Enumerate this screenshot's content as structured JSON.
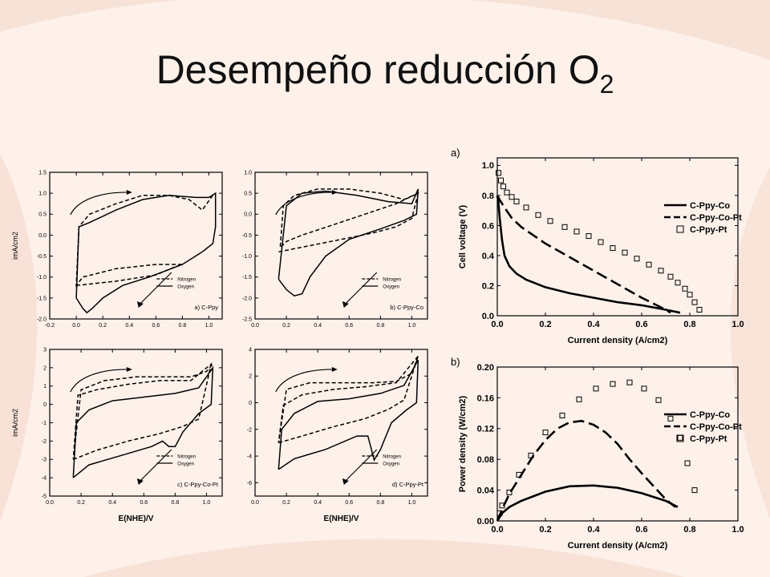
{
  "slide": {
    "title": "Desempeño reducción O",
    "title_subscript": "2"
  },
  "background": {
    "color": "#fdf1ea",
    "swirl_color": "#f5d9cc"
  },
  "chart_data": [
    {
      "type": "line",
      "panel_label": "a) C-Ppy",
      "xlabel": "",
      "ylabel": "imA/cm2",
      "xlim": [
        -0.2,
        1.1
      ],
      "ylim": [
        -2.0,
        1.5
      ],
      "xticks": [
        "-0.2",
        "0.0",
        "0.2",
        "0.4",
        "0.6",
        "0.8",
        "1.0"
      ],
      "xtick_values": [
        -0.2,
        0,
        0.2,
        0.4,
        0.6,
        0.8,
        1.0
      ],
      "yticks": [
        "-2.0",
        "-1.5",
        "-1.0",
        "-0.5",
        "0.0",
        "0.5",
        "1.0",
        "1.5"
      ],
      "ytick_values": [
        -2,
        -1.5,
        -1,
        -0.5,
        0,
        0.5,
        1,
        1.5
      ],
      "legend": [
        "Nitrogen",
        "Oxygen"
      ],
      "series": [
        {
          "name": "Nitrogen",
          "style": "dashed",
          "x": [
            0.0,
            0.3,
            0.6,
            0.75,
            0.8,
            0.6,
            0.3,
            0.05,
            0.0,
            0.02,
            0.1,
            0.3,
            0.5,
            0.7,
            0.85,
            0.95,
            1.04
          ],
          "y": [
            -1.2,
            -1.1,
            -0.95,
            -0.75,
            -0.7,
            -0.7,
            -0.8,
            -1.0,
            -1.2,
            0.2,
            0.5,
            0.75,
            0.95,
            0.95,
            0.85,
            0.6,
            1.0
          ]
        },
        {
          "name": "Oxygen",
          "style": "solid",
          "x": [
            0.0,
            0.05,
            0.08,
            0.12,
            0.2,
            0.35,
            0.55,
            0.8,
            0.95,
            1.03,
            1.05,
            1.05,
            1.0,
            0.9,
            0.7,
            0.5,
            0.3,
            0.1,
            0.02,
            0.0
          ],
          "y": [
            -1.5,
            -1.75,
            -1.85,
            -1.75,
            -1.5,
            -1.2,
            -1.0,
            -0.7,
            -0.4,
            -0.2,
            0.2,
            1.0,
            0.9,
            0.9,
            0.95,
            0.85,
            0.6,
            0.3,
            0.2,
            -1.5
          ]
        }
      ]
    },
    {
      "type": "line",
      "panel_label": "b) C-Ppy-Co",
      "xlabel": "",
      "ylabel": "",
      "xlim": [
        0.0,
        1.1
      ],
      "ylim": [
        -2.5,
        1.0
      ],
      "xticks": [
        "0.0",
        "0.2",
        "0.4",
        "0.6",
        "0.8",
        "1.0"
      ],
      "xtick_values": [
        0,
        0.2,
        0.4,
        0.6,
        0.8,
        1.0
      ],
      "yticks": [
        "-2.5",
        "-2.0",
        "-1.5",
        "-1.0",
        "-0.5",
        "0.0",
        "0.5",
        "1.0"
      ],
      "ytick_values": [
        -2.5,
        -2,
        -1.5,
        -1,
        -0.5,
        0,
        0.5,
        1
      ],
      "legend": [
        "Nitrogen",
        "Oxygen"
      ],
      "series": [
        {
          "name": "Nitrogen",
          "style": "dashed",
          "x": [
            0.15,
            0.35,
            0.55,
            0.75,
            0.9,
            1.0,
            1.04,
            0.9,
            0.7,
            0.5,
            0.3,
            0.2,
            0.16,
            0.18,
            0.25,
            0.4,
            0.6,
            0.8,
            0.95,
            1.04
          ],
          "y": [
            -0.9,
            -0.75,
            -0.6,
            -0.45,
            -0.3,
            -0.1,
            0.5,
            0.25,
            0.0,
            -0.25,
            -0.5,
            -0.65,
            -0.8,
            0.2,
            0.45,
            0.6,
            0.6,
            0.5,
            0.35,
            0.5
          ]
        },
        {
          "name": "Oxygen",
          "style": "solid",
          "x": [
            0.15,
            0.2,
            0.25,
            0.3,
            0.35,
            0.45,
            0.6,
            0.8,
            0.95,
            1.03,
            1.04,
            1.0,
            0.85,
            0.65,
            0.45,
            0.3,
            0.2,
            0.15
          ],
          "y": [
            -1.55,
            -1.8,
            -1.95,
            -1.9,
            -1.5,
            -1.0,
            -0.6,
            -0.35,
            -0.15,
            0.0,
            0.6,
            0.25,
            0.3,
            0.45,
            0.55,
            0.5,
            0.2,
            -1.55
          ]
        }
      ]
    },
    {
      "type": "line",
      "panel_label": "c) C-Ppy-Co-Pt",
      "xlabel": "E(NHE)/V",
      "ylabel": "imA/cm2",
      "xlim": [
        0.0,
        1.1
      ],
      "ylim": [
        -5,
        3
      ],
      "xticks": [
        "0.0",
        "0.2",
        "0.4",
        "0.6",
        "0.8",
        "1.0"
      ],
      "xtick_values": [
        0,
        0.2,
        0.4,
        0.6,
        0.8,
        1.0
      ],
      "yticks": [
        "-5",
        "-4",
        "-3",
        "-2",
        "-1",
        "0",
        "1",
        "2",
        "3"
      ],
      "ytick_values": [
        -5,
        -4,
        -3,
        -2,
        -1,
        0,
        1,
        2,
        3
      ],
      "legend": [
        "Nitrogen",
        "Oxygen"
      ],
      "series": [
        {
          "name": "Nitrogen",
          "style": "dashed",
          "x": [
            0.15,
            0.3,
            0.5,
            0.7,
            0.85,
            0.95,
            1.03,
            0.9,
            0.7,
            0.5,
            0.3,
            0.18,
            0.15,
            0.2,
            0.35,
            0.55,
            0.75,
            0.9,
            1.0,
            1.04
          ],
          "y": [
            -3.0,
            -2.5,
            -2.0,
            -1.6,
            -1.2,
            -0.8,
            2.2,
            1.3,
            1.3,
            1.1,
            0.8,
            0.5,
            -3.0,
            0.8,
            1.3,
            1.5,
            1.5,
            1.5,
            1.8,
            2.2
          ]
        },
        {
          "name": "Oxygen",
          "style": "solid",
          "x": [
            0.15,
            0.25,
            0.45,
            0.65,
            0.72,
            0.76,
            0.8,
            0.85,
            0.95,
            1.03,
            1.04,
            0.95,
            0.8,
            0.6,
            0.4,
            0.25,
            0.17,
            0.15
          ],
          "y": [
            -4.0,
            -3.3,
            -2.8,
            -2.3,
            -2.0,
            -2.3,
            -2.3,
            -1.5,
            -0.5,
            0.0,
            2.0,
            0.9,
            0.6,
            0.4,
            0.2,
            -0.3,
            -1.0,
            -4.0
          ]
        }
      ]
    },
    {
      "type": "line",
      "panel_label": "d) C-Ppy-Pt",
      "xlabel": "E(NHE)/V",
      "ylabel": "",
      "xlim": [
        0.0,
        1.1
      ],
      "ylim": [
        -7,
        4
      ],
      "xticks": [
        "0.0",
        "0.2",
        "0.4",
        "0.6",
        "0.8",
        "1.0"
      ],
      "xtick_values": [
        0,
        0.2,
        0.4,
        0.6,
        0.8,
        1.0
      ],
      "yticks": [
        "-6",
        "-4",
        "-2",
        "0",
        "2",
        "4"
      ],
      "ytick_values": [
        -6,
        -4,
        -2,
        0,
        2,
        4
      ],
      "legend": [
        "Nitrogen",
        "Oxygen"
      ],
      "series": [
        {
          "name": "Nitrogen",
          "style": "dashed",
          "x": [
            0.15,
            0.3,
            0.5,
            0.7,
            0.85,
            0.95,
            1.04,
            0.9,
            0.7,
            0.5,
            0.3,
            0.18,
            0.15,
            0.2,
            0.35,
            0.55,
            0.75,
            0.9,
            1.0,
            1.04
          ],
          "y": [
            -3.0,
            -2.5,
            -1.8,
            -1.2,
            -0.5,
            0.2,
            3.5,
            1.5,
            1.2,
            1.0,
            0.6,
            -0.2,
            -3.0,
            1.0,
            1.5,
            1.5,
            1.5,
            1.6,
            2.2,
            3.5
          ]
        },
        {
          "name": "Oxygen",
          "style": "solid",
          "x": [
            0.15,
            0.25,
            0.45,
            0.65,
            0.72,
            0.76,
            0.8,
            0.87,
            0.97,
            1.03,
            1.04,
            0.95,
            0.8,
            0.6,
            0.4,
            0.25,
            0.17,
            0.15
          ],
          "y": [
            -5.0,
            -4.2,
            -3.5,
            -2.5,
            -2.5,
            -4.3,
            -3.5,
            -1.5,
            -0.5,
            0.0,
            3.2,
            1.3,
            0.7,
            0.3,
            0.1,
            -0.8,
            -2.0,
            -5.0
          ]
        }
      ]
    },
    {
      "type": "line",
      "panel_label": "a)",
      "xlabel": "Current density (A/cm2)",
      "ylabel": "Cell voltage (V)",
      "xlim": [
        0.0,
        1.0
      ],
      "ylim": [
        0.0,
        1.05
      ],
      "xticks": [
        "0.0",
        "0.2",
        "0.4",
        "0.6",
        "0.8",
        "1.0"
      ],
      "xtick_values": [
        0,
        0.2,
        0.4,
        0.6,
        0.8,
        1.0
      ],
      "yticks": [
        "0.0",
        "0.2",
        "0.4",
        "0.6",
        "0.8",
        "1.0"
      ],
      "ytick_values": [
        0,
        0.2,
        0.4,
        0.6,
        0.8,
        1.0
      ],
      "legend": [
        "C-Ppy-Co",
        "C-Ppy-Co-Pt",
        "C-Ppy-Pt"
      ],
      "series": [
        {
          "name": "C-Ppy-Co",
          "style": "solid",
          "x": [
            0.0,
            0.005,
            0.01,
            0.02,
            0.03,
            0.05,
            0.08,
            0.12,
            0.2,
            0.3,
            0.4,
            0.5,
            0.6,
            0.7,
            0.76
          ],
          "y": [
            0.8,
            0.75,
            0.65,
            0.5,
            0.4,
            0.33,
            0.28,
            0.24,
            0.19,
            0.15,
            0.12,
            0.09,
            0.07,
            0.04,
            0.02
          ]
        },
        {
          "name": "C-Ppy-Co-Pt",
          "style": "dashed",
          "x": [
            0.0,
            0.01,
            0.03,
            0.06,
            0.1,
            0.2,
            0.3,
            0.4,
            0.5,
            0.6,
            0.7,
            0.72
          ],
          "y": [
            0.8,
            0.77,
            0.72,
            0.65,
            0.59,
            0.48,
            0.39,
            0.3,
            0.21,
            0.12,
            0.04,
            0.02
          ]
        },
        {
          "name": "C-Ppy-Pt",
          "style": "squares",
          "x": [
            0.005,
            0.015,
            0.025,
            0.04,
            0.06,
            0.08,
            0.12,
            0.17,
            0.22,
            0.28,
            0.33,
            0.38,
            0.43,
            0.48,
            0.53,
            0.58,
            0.63,
            0.68,
            0.72,
            0.75,
            0.78,
            0.8,
            0.82,
            0.84
          ],
          "y": [
            0.95,
            0.9,
            0.86,
            0.82,
            0.79,
            0.76,
            0.72,
            0.67,
            0.63,
            0.59,
            0.56,
            0.53,
            0.49,
            0.45,
            0.42,
            0.38,
            0.34,
            0.3,
            0.26,
            0.22,
            0.18,
            0.14,
            0.09,
            0.04
          ]
        }
      ]
    },
    {
      "type": "line",
      "panel_label": "b)",
      "xlabel": "Current density (A/cm2)",
      "ylabel": "Power density (W/cm2)",
      "xlim": [
        0.0,
        1.0
      ],
      "ylim": [
        0.0,
        0.2
      ],
      "xticks": [
        "0.0",
        "0.2",
        "0.4",
        "0.6",
        "0.8",
        "1.0"
      ],
      "xtick_values": [
        0,
        0.2,
        0.4,
        0.6,
        0.8,
        1.0
      ],
      "yticks": [
        "0.00",
        "0.04",
        "0.08",
        "0.12",
        "0.16",
        "0.20"
      ],
      "ytick_values": [
        0,
        0.04,
        0.08,
        0.12,
        0.16,
        0.2
      ],
      "legend": [
        "C-Ppy-Co",
        "C-Ppy-Co-Pt",
        "C-Ppy-Pt"
      ],
      "series": [
        {
          "name": "C-Ppy-Co",
          "style": "solid",
          "x": [
            0.0,
            0.02,
            0.05,
            0.1,
            0.2,
            0.3,
            0.4,
            0.5,
            0.6,
            0.7,
            0.75
          ],
          "y": [
            0.0,
            0.01,
            0.018,
            0.026,
            0.038,
            0.045,
            0.046,
            0.043,
            0.036,
            0.026,
            0.018
          ]
        },
        {
          "name": "C-Ppy-Co-Pt",
          "style": "dashed",
          "x": [
            0.0,
            0.02,
            0.05,
            0.1,
            0.15,
            0.2,
            0.25,
            0.3,
            0.35,
            0.4,
            0.45,
            0.5,
            0.55,
            0.6,
            0.65,
            0.7,
            0.74
          ],
          "y": [
            0.0,
            0.015,
            0.035,
            0.06,
            0.085,
            0.105,
            0.12,
            0.128,
            0.13,
            0.125,
            0.115,
            0.1,
            0.08,
            0.062,
            0.045,
            0.028,
            0.018
          ]
        },
        {
          "name": "C-Ppy-Pt",
          "style": "squares",
          "x": [
            0.01,
            0.02,
            0.05,
            0.09,
            0.14,
            0.2,
            0.27,
            0.34,
            0.41,
            0.48,
            0.55,
            0.61,
            0.67,
            0.72,
            0.76,
            0.79,
            0.82
          ],
          "y": [
            0.01,
            0.02,
            0.037,
            0.06,
            0.085,
            0.115,
            0.137,
            0.158,
            0.172,
            0.178,
            0.18,
            0.172,
            0.157,
            0.133,
            0.108,
            0.075,
            0.04
          ]
        }
      ]
    }
  ]
}
